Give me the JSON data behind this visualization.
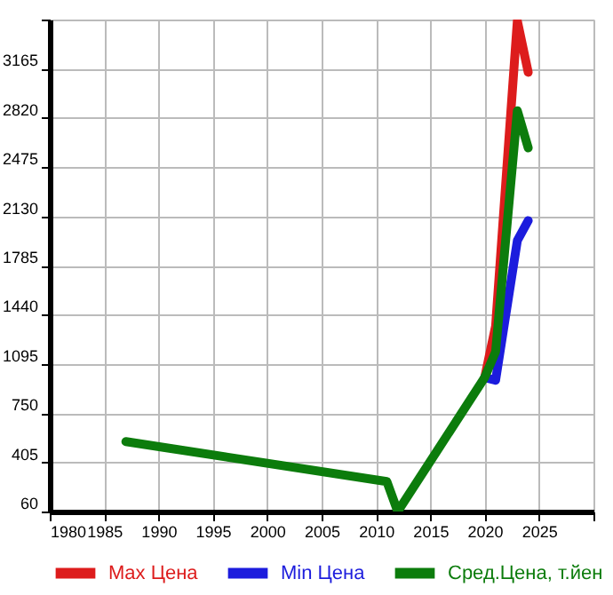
{
  "chart_data": {
    "type": "line",
    "series": [
      {
        "name": "Max Цена",
        "color": "#dd1c1c",
        "x": [
          2020,
          2021,
          2023,
          2024
        ],
        "values": [
          1000,
          1360,
          3500,
          3140
        ]
      },
      {
        "name": "Min Цена",
        "color": "#1c1cdd",
        "x": [
          2020,
          2021,
          2023,
          2024
        ],
        "values": [
          1000,
          980,
          1960,
          2100
        ]
      },
      {
        "name": "Сред.Цена, т.йен",
        "color": "#0c7c0c",
        "x": [
          1987,
          2011,
          2012,
          2020,
          2021,
          2023,
          2024
        ],
        "values": [
          550,
          270,
          60,
          1000,
          1180,
          2870,
          2610
        ]
      }
    ],
    "xlim": [
      1980,
      2030
    ],
    "xticks": [
      1980,
      1985,
      1990,
      1995,
      2000,
      2005,
      2010,
      2015,
      2020,
      2025,
      {
        "value": 2030,
        "label": null
      }
    ],
    "ylim": [
      60,
      3510
    ],
    "yticks": [
      60,
      405,
      750,
      1095,
      1440,
      1785,
      2130,
      2475,
      2820,
      3165,
      {
        "value": 3510,
        "label": null
      }
    ],
    "grid": true,
    "legend": "bottom",
    "line_style": "solid",
    "marker": "none"
  }
}
